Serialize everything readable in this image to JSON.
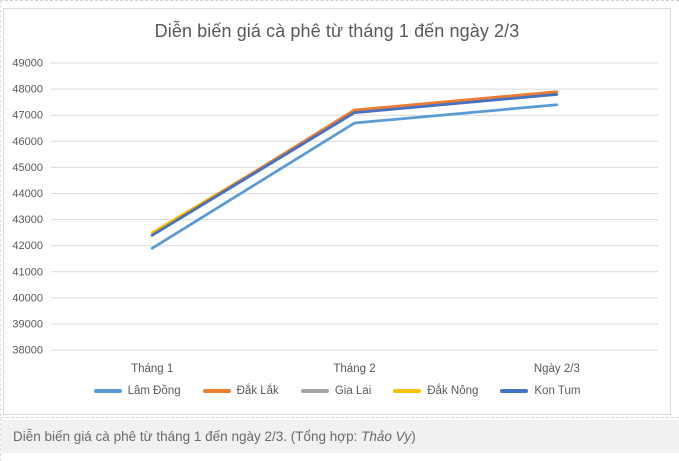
{
  "chart_data": {
    "type": "line",
    "title": "Diễn biến giá cà phê từ tháng 1 đến ngày 2/3",
    "categories": [
      "Tháng 1",
      "Tháng 2",
      "Ngày 2/3"
    ],
    "series": [
      {
        "name": "Lâm Đồng",
        "color": "#5B9BD5",
        "values": [
          41900,
          46700,
          47400
        ]
      },
      {
        "name": "Đắk Lắk",
        "color": "#ED7D31",
        "values": [
          42400,
          47200,
          47900
        ]
      },
      {
        "name": "Gia Lai",
        "color": "#A5A5A5",
        "values": [
          42400,
          47100,
          47800
        ]
      },
      {
        "name": "Đắk Nông",
        "color": "#FFC000",
        "values": [
          42500,
          47100,
          47800
        ]
      },
      {
        "name": "Kon Tum",
        "color": "#4472C4",
        "values": [
          42400,
          47100,
          47800
        ]
      }
    ],
    "xlabel": "",
    "ylabel": "",
    "ylim": [
      38000,
      49000
    ],
    "ytick_step": 1000,
    "grid": true,
    "gridline_color": "#d9d9d9",
    "label_color": "#595959",
    "legend_position": "bottom",
    "draw_order": [
      2,
      3,
      0,
      1,
      4
    ]
  },
  "caption": {
    "text_before": "Diễn biến giá cà phê từ tháng 1 đến ngày 2/3. (Tổng hợp: ",
    "author": "Thảo Vy",
    "text_after": ")"
  }
}
